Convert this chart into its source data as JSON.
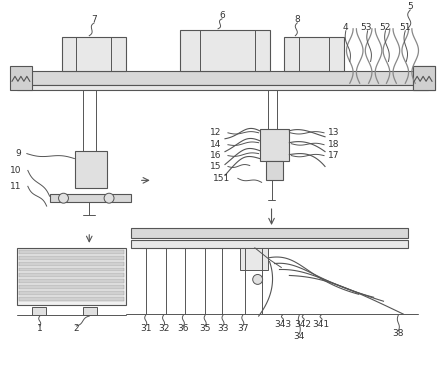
{
  "background_color": "#ffffff",
  "line_color": "#555555",
  "light_gray": "#d8d8d8",
  "medium_gray": "#aaaaaa",
  "label_color": "#333333",
  "fig_w": 4.44,
  "fig_h": 3.67,
  "dpi": 100
}
